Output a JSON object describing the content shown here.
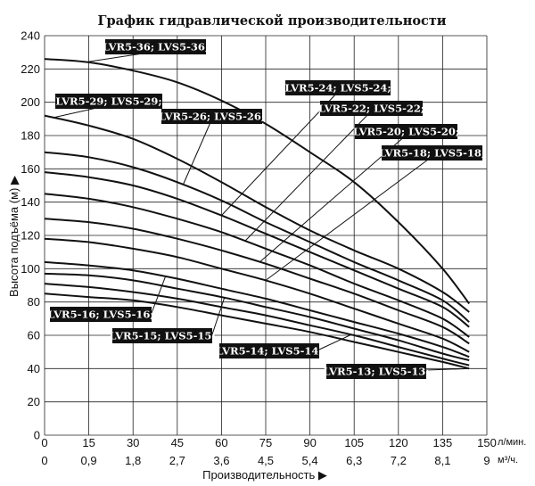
{
  "chart_data": {
    "type": "line",
    "title": "График гидравлической производительности",
    "xlabel": "Производительность",
    "ylabel": "Высота подъёма (м)",
    "x_unit": "л/мин.",
    "x2_unit": "м³/ч.",
    "xlim": [
      0,
      150
    ],
    "ylim": [
      0,
      240
    ],
    "x_ticks": [
      0,
      15,
      30,
      45,
      60,
      75,
      90,
      105,
      120,
      135,
      150
    ],
    "x2_ticks": [
      "0",
      "0,9",
      "1,8",
      "2,7",
      "3,6",
      "4,5",
      "5,4",
      "6,3",
      "7,2",
      "8,1",
      "9"
    ],
    "y_ticks": [
      0,
      20,
      40,
      60,
      80,
      100,
      120,
      140,
      160,
      180,
      200,
      220,
      240
    ],
    "grid": true,
    "x": [
      0,
      15,
      30,
      45,
      60,
      75,
      90,
      105,
      120,
      135,
      144
    ],
    "series": [
      {
        "name": "LVR5-36; LVS5-36;",
        "values": [
          226,
          224,
          219,
          212,
          201,
          187,
          170,
          152,
          128,
          100,
          79
        ]
      },
      {
        "name": "LVR5-29; LVS5-29;",
        "values": [
          192,
          186,
          178,
          166,
          152,
          137,
          123,
          111,
          100,
          86,
          74
        ]
      },
      {
        "name": "LVR5-26; LVS5-26;",
        "values": [
          170,
          167,
          161,
          152,
          141,
          128,
          116,
          104,
          93,
          81,
          68
        ]
      },
      {
        "name": "LVR5-24; LVS5-24;",
        "values": [
          158,
          155,
          150,
          142,
          132,
          121,
          110,
          99,
          88,
          77,
          65
        ]
      },
      {
        "name": "LVR5-22; LVS5-22;",
        "values": [
          145,
          142,
          137,
          130,
          122,
          112,
          102,
          91,
          81,
          70,
          59
        ]
      },
      {
        "name": "LVR5-20; LVS5-20;",
        "values": [
          130,
          128,
          124,
          118,
          111,
          103,
          94,
          85,
          75,
          65,
          55
        ]
      },
      {
        "name": "LVR5-18; LVS5-18;",
        "values": [
          118,
          116,
          112,
          107,
          100,
          93,
          85,
          76,
          67,
          58,
          50
        ]
      },
      {
        "name": "LVR5-16; LVS5-16;",
        "values": [
          104,
          102,
          99,
          94,
          88,
          82,
          75,
          68,
          61,
          53,
          47
        ]
      },
      {
        "name": "LVR5-15; LVS5-15;",
        "values": [
          97,
          96,
          93,
          88,
          83,
          77,
          71,
          64,
          57,
          49,
          45
        ]
      },
      {
        "name": "LVR5-14; LVS5-14;",
        "values": [
          91,
          89,
          86,
          82,
          77,
          72,
          66,
          60,
          53,
          46,
          42
        ]
      },
      {
        "name": "LVR5-13; LVS5-13;",
        "values": [
          85,
          83,
          81,
          77,
          72,
          67,
          62,
          56,
          50,
          44,
          40
        ]
      }
    ]
  }
}
